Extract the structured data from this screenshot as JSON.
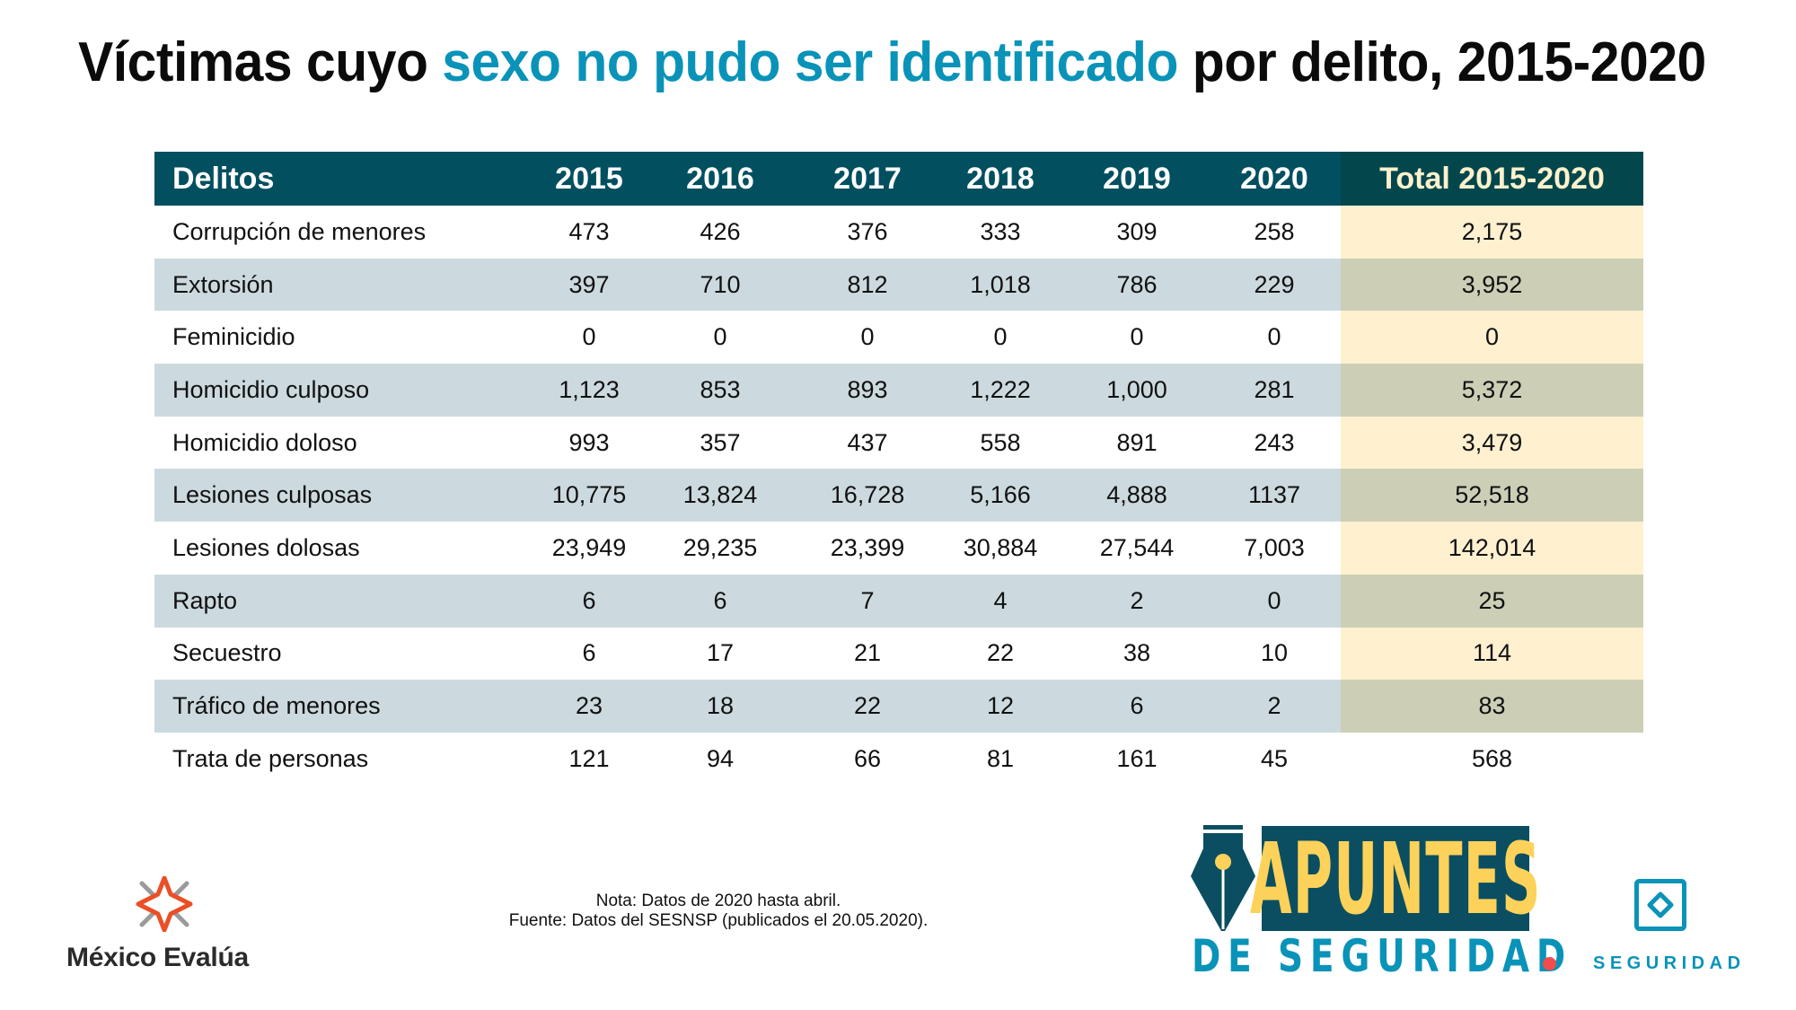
{
  "title": {
    "before": "Víctimas cuyo ",
    "accent": "sexo no pudo ser identificado",
    "after": " por delito, 2015-2020",
    "accent_color": "#0a93b8"
  },
  "table": {
    "headers": [
      "Delitos",
      "2015",
      "2016",
      "2017",
      "2018",
      "2019",
      "2020",
      "Total 2015-2020"
    ],
    "rows": [
      {
        "delito": "Corrupción de menores",
        "values": [
          "473",
          "426",
          "376",
          "333",
          "309",
          "258"
        ],
        "total": "2,175"
      },
      {
        "delito": "Extorsión",
        "values": [
          "397",
          "710",
          "812",
          "1,018",
          "786",
          "229"
        ],
        "total": "3,952"
      },
      {
        "delito": "Feminicidio",
        "values": [
          "0",
          "0",
          "0",
          "0",
          "0",
          "0"
        ],
        "total": "0"
      },
      {
        "delito": "Homicidio culposo",
        "values": [
          "1,123",
          "853",
          "893",
          "1,222",
          "1,000",
          "281"
        ],
        "total": "5,372"
      },
      {
        "delito": "Homicidio doloso",
        "values": [
          "993",
          "357",
          "437",
          "558",
          "891",
          "243"
        ],
        "total": "3,479"
      },
      {
        "delito": "Lesiones culposas",
        "values": [
          "10,775",
          "13,824",
          "16,728",
          "5,166",
          "4,888",
          "1137"
        ],
        "total": "52,518"
      },
      {
        "delito": "Lesiones dolosas",
        "values": [
          "23,949",
          "29,235",
          "23,399",
          "30,884",
          "27,544",
          "7,003"
        ],
        "total": "142,014"
      },
      {
        "delito": "Rapto",
        "values": [
          "6",
          "6",
          "7",
          "4",
          "2",
          "0"
        ],
        "total": "25"
      },
      {
        "delito": "Secuestro",
        "values": [
          "6",
          "17",
          "21",
          "22",
          "38",
          "10"
        ],
        "total": "114"
      },
      {
        "delito": "Tráfico de menores",
        "values": [
          "23",
          "18",
          "22",
          "12",
          "6",
          "2"
        ],
        "total": "83"
      },
      {
        "delito": "Trata de personas",
        "values": [
          "121",
          "94",
          "66",
          "81",
          "161",
          "45"
        ],
        "total": "568"
      }
    ],
    "colors": {
      "header_bg": "#024f60",
      "header_total_bg": "#03474d",
      "header_total_text": "#fff1cc",
      "stripe": "#ccdadf",
      "total_bg": "#fff0d0",
      "total_stripe": "#cccfb6"
    }
  },
  "footer": {
    "note_line1": "Nota: Datos de 2020 hasta abril.",
    "note_line2": "Fuente: Datos del SESNSP (publicados el 20.05.2020).",
    "org_name": "México Evalúa",
    "apuntes_word": "APUNTES",
    "apuntes_sub": "DE SEGURIDAD",
    "seguridad_label": "SEGURIDAD"
  },
  "icons": {
    "org_logo": "mexico-evalua-star-icon",
    "pen_nib": "fountain-pen-nib-icon",
    "seguridad": "diamond-in-square-icon"
  }
}
